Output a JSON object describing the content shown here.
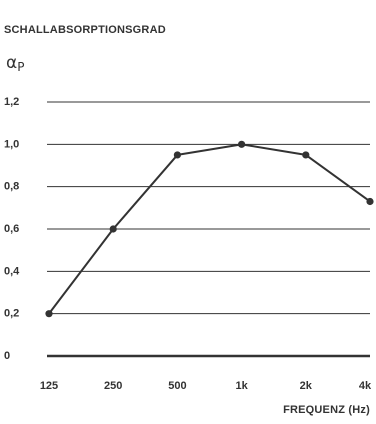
{
  "colors": {
    "line": "#333333",
    "grid": "#333333",
    "text": "#333333"
  },
  "chart_data": {
    "type": "line",
    "title": "SCHALLABSORPTIONSGRAD",
    "ylabel_symbol": "α",
    "ylabel_subscript": "P",
    "xlabel": "FREQUENZ (Hz)",
    "categories": [
      "125",
      "250",
      "500",
      "1k",
      "2k",
      "4k"
    ],
    "values": [
      0.2,
      0.6,
      0.95,
      1.0,
      0.95,
      0.73
    ],
    "ylim": [
      0,
      1.2
    ],
    "yticks": [
      0,
      0.2,
      0.4,
      0.6,
      0.8,
      1.0,
      1.2
    ],
    "ytick_labels": [
      "0",
      "0,2",
      "0,4",
      "0,6",
      "0,8",
      "1,0",
      "1,2"
    ],
    "grid": true,
    "legend": "none"
  }
}
